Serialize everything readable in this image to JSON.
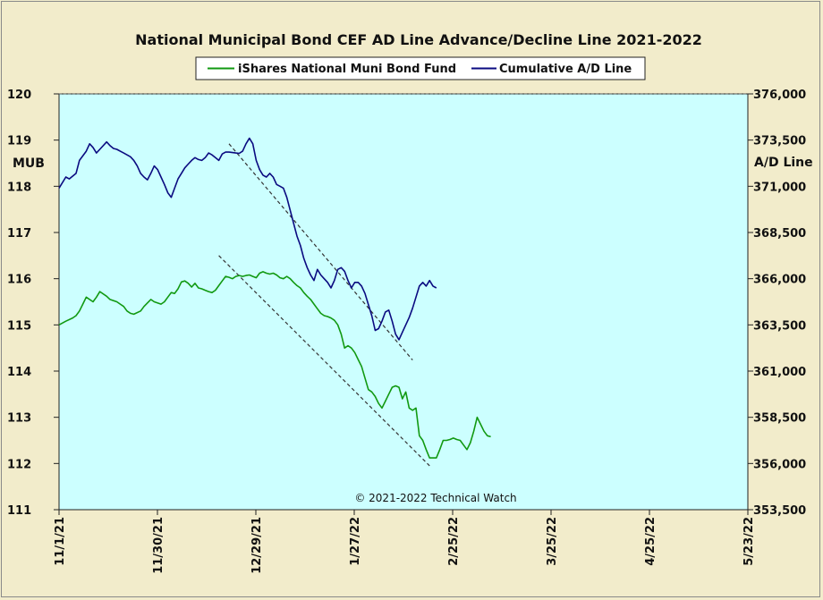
{
  "chart_data": {
    "type": "line",
    "title": "National Municipal Bond CEF AD Line Advance/Decline Line 2021-2022",
    "copyright": "© 2021-2022 Technical Watch",
    "y_left": {
      "label": "MUB",
      "range": [
        111,
        120
      ],
      "ticks": [
        "111",
        "112",
        "113",
        "114",
        "115",
        "116",
        "117",
        "118",
        "119",
        "120"
      ]
    },
    "y_right": {
      "label": "A/D Line",
      "range": [
        353500,
        376000
      ],
      "ticks": [
        "353,500",
        "356,000",
        "358,500",
        "361,000",
        "363,500",
        "366,000",
        "368,500",
        "371,000",
        "373,500",
        "376,000"
      ]
    },
    "x_ticks": [
      "11/1/21",
      "11/30/21",
      "12/29/21",
      "1/27/22",
      "2/25/22",
      "3/25/22",
      "4/25/22",
      "5/23/22"
    ],
    "grid": false,
    "legend_position": "top-center",
    "colors": {
      "plot_bg": "#ccffff",
      "page_bg": "#f2eccb",
      "mub": "#119911",
      "ad": "#0a0a80",
      "trend": "#333333"
    },
    "series": [
      {
        "name": "iShares National Muni Bond Fund",
        "axis": "left",
        "color": "#119911",
        "values": [
          [
            0,
            115.0
          ],
          [
            2,
            115.08
          ],
          [
            4,
            115.15
          ],
          [
            5,
            115.2
          ],
          [
            6,
            115.3
          ],
          [
            7,
            115.45
          ],
          [
            8,
            115.6
          ],
          [
            10,
            115.5
          ],
          [
            11,
            115.6
          ],
          [
            12,
            115.72
          ],
          [
            14,
            115.62
          ],
          [
            15,
            115.55
          ],
          [
            17,
            115.5
          ],
          [
            18,
            115.45
          ],
          [
            19,
            115.4
          ],
          [
            20,
            115.3
          ],
          [
            21,
            115.25
          ],
          [
            22,
            115.23
          ],
          [
            24,
            115.3
          ],
          [
            25,
            115.4
          ],
          [
            27,
            115.55
          ],
          [
            28,
            115.5
          ],
          [
            30,
            115.45
          ],
          [
            31,
            115.5
          ],
          [
            32,
            115.6
          ],
          [
            33,
            115.7
          ],
          [
            34,
            115.68
          ],
          [
            35,
            115.78
          ],
          [
            36,
            115.93
          ],
          [
            37,
            115.95
          ],
          [
            38,
            115.9
          ],
          [
            39,
            115.82
          ],
          [
            40,
            115.9
          ],
          [
            41,
            115.8
          ],
          [
            42,
            115.78
          ],
          [
            43,
            115.75
          ],
          [
            44,
            115.72
          ],
          [
            45,
            115.7
          ],
          [
            46,
            115.75
          ],
          [
            47,
            115.85
          ],
          [
            48,
            115.95
          ],
          [
            49,
            116.05
          ],
          [
            50,
            116.03
          ],
          [
            51,
            116.0
          ],
          [
            52,
            116.05
          ],
          [
            53,
            116.07
          ],
          [
            54,
            116.05
          ],
          [
            55,
            116.07
          ],
          [
            56,
            116.08
          ],
          [
            57,
            116.05
          ],
          [
            58,
            116.02
          ],
          [
            59,
            116.12
          ],
          [
            60,
            116.15
          ],
          [
            61,
            116.12
          ],
          [
            62,
            116.1
          ],
          [
            63,
            116.12
          ],
          [
            64,
            116.08
          ],
          [
            65,
            116.02
          ],
          [
            66,
            116.0
          ],
          [
            67,
            116.05
          ],
          [
            68,
            116.0
          ],
          [
            69,
            115.92
          ],
          [
            70,
            115.85
          ],
          [
            71,
            115.8
          ],
          [
            72,
            115.7
          ],
          [
            73,
            115.62
          ],
          [
            74,
            115.55
          ],
          [
            75,
            115.45
          ],
          [
            76,
            115.35
          ],
          [
            77,
            115.25
          ],
          [
            78,
            115.2
          ],
          [
            79,
            115.18
          ],
          [
            80,
            115.15
          ],
          [
            81,
            115.1
          ],
          [
            82,
            115.0
          ],
          [
            83,
            114.8
          ],
          [
            84,
            114.5
          ],
          [
            85,
            114.55
          ],
          [
            86,
            114.5
          ],
          [
            87,
            114.4
          ],
          [
            88,
            114.25
          ],
          [
            89,
            114.1
          ],
          [
            90,
            113.85
          ],
          [
            91,
            113.6
          ],
          [
            92,
            113.55
          ],
          [
            93,
            113.45
          ],
          [
            94,
            113.3
          ],
          [
            95,
            113.2
          ],
          [
            96,
            113.35
          ],
          [
            97,
            113.5
          ],
          [
            98,
            113.65
          ],
          [
            99,
            113.68
          ],
          [
            100,
            113.65
          ],
          [
            101,
            113.4
          ],
          [
            102,
            113.55
          ],
          [
            103,
            113.2
          ],
          [
            104,
            113.15
          ],
          [
            105,
            113.2
          ],
          [
            106,
            112.6
          ],
          [
            107,
            112.5
          ],
          [
            108,
            112.3
          ],
          [
            109,
            112.12
          ],
          [
            110,
            112.12
          ],
          [
            111,
            112.12
          ],
          [
            112,
            112.3
          ],
          [
            113,
            112.5
          ],
          [
            114,
            112.5
          ],
          [
            115,
            112.52
          ],
          [
            116,
            112.55
          ],
          [
            117,
            112.52
          ],
          [
            118,
            112.5
          ],
          [
            119,
            112.4
          ],
          [
            120,
            112.3
          ],
          [
            121,
            112.45
          ],
          [
            122,
            112.7
          ],
          [
            123,
            113.0
          ],
          [
            124,
            112.85
          ],
          [
            125,
            112.7
          ],
          [
            126,
            112.6
          ],
          [
            127,
            112.58
          ]
        ]
      },
      {
        "name": "Cumulative A/D Line",
        "axis": "right",
        "color": "#0a0a80",
        "values": [
          [
            0,
            370900
          ],
          [
            2,
            371500
          ],
          [
            3,
            371400
          ],
          [
            5,
            371700
          ],
          [
            6,
            372400
          ],
          [
            8,
            372900
          ],
          [
            9,
            373300
          ],
          [
            10,
            373100
          ],
          [
            11,
            372800
          ],
          [
            12,
            373000
          ],
          [
            14,
            373400
          ],
          [
            15,
            373200
          ],
          [
            16,
            373050
          ],
          [
            17,
            373000
          ],
          [
            18,
            372900
          ],
          [
            19,
            372800
          ],
          [
            21,
            372600
          ],
          [
            22,
            372400
          ],
          [
            23,
            372100
          ],
          [
            24,
            371700
          ],
          [
            25,
            371500
          ],
          [
            26,
            371350
          ],
          [
            27,
            371700
          ],
          [
            28,
            372100
          ],
          [
            29,
            371900
          ],
          [
            30,
            371500
          ],
          [
            31,
            371100
          ],
          [
            32,
            370650
          ],
          [
            33,
            370400
          ],
          [
            34,
            370900
          ],
          [
            35,
            371400
          ],
          [
            36,
            371700
          ],
          [
            37,
            372000
          ],
          [
            38,
            372200
          ],
          [
            39,
            372400
          ],
          [
            40,
            372550
          ],
          [
            41,
            372450
          ],
          [
            42,
            372400
          ],
          [
            43,
            372550
          ],
          [
            44,
            372800
          ],
          [
            45,
            372700
          ],
          [
            46,
            372550
          ],
          [
            47,
            372400
          ],
          [
            48,
            372750
          ],
          [
            49,
            372850
          ],
          [
            50,
            372850
          ],
          [
            52,
            372800
          ],
          [
            53,
            372780
          ],
          [
            54,
            372900
          ],
          [
            55,
            373300
          ],
          [
            56,
            373600
          ],
          [
            57,
            373300
          ],
          [
            58,
            372400
          ],
          [
            59,
            371900
          ],
          [
            60,
            371600
          ],
          [
            61,
            371500
          ],
          [
            62,
            371700
          ],
          [
            63,
            371500
          ],
          [
            64,
            371100
          ],
          [
            65,
            371000
          ],
          [
            66,
            370900
          ],
          [
            67,
            370400
          ],
          [
            68,
            369700
          ],
          [
            69,
            369000
          ],
          [
            70,
            368300
          ],
          [
            71,
            367800
          ],
          [
            72,
            367100
          ],
          [
            73,
            366600
          ],
          [
            74,
            366200
          ],
          [
            75,
            365900
          ],
          [
            76,
            366500
          ],
          [
            77,
            366200
          ],
          [
            78,
            366000
          ],
          [
            79,
            365800
          ],
          [
            80,
            365500
          ],
          [
            81,
            365900
          ],
          [
            82,
            366500
          ],
          [
            83,
            366600
          ],
          [
            84,
            366400
          ],
          [
            85,
            365900
          ],
          [
            86,
            365500
          ],
          [
            87,
            365800
          ],
          [
            88,
            365800
          ],
          [
            89,
            365600
          ],
          [
            90,
            365200
          ],
          [
            91,
            364600
          ],
          [
            92,
            364000
          ],
          [
            93,
            363200
          ],
          [
            94,
            363300
          ],
          [
            95,
            363700
          ],
          [
            96,
            364200
          ],
          [
            97,
            364300
          ],
          [
            98,
            363700
          ],
          [
            99,
            363000
          ],
          [
            100,
            362700
          ],
          [
            101,
            363100
          ],
          [
            102,
            363500
          ],
          [
            103,
            363900
          ],
          [
            104,
            364400
          ],
          [
            105,
            365000
          ],
          [
            106,
            365600
          ],
          [
            107,
            365800
          ],
          [
            108,
            365600
          ],
          [
            109,
            365900
          ],
          [
            110,
            365600
          ],
          [
            111,
            365500
          ]
        ]
      }
    ],
    "trendlines": [
      {
        "axis": "right",
        "from": [
          50,
          373300
        ],
        "to": [
          104,
          361600
        ]
      },
      {
        "axis": "left",
        "from": [
          47,
          116.5
        ],
        "to": [
          109,
          111.95
        ]
      }
    ]
  }
}
